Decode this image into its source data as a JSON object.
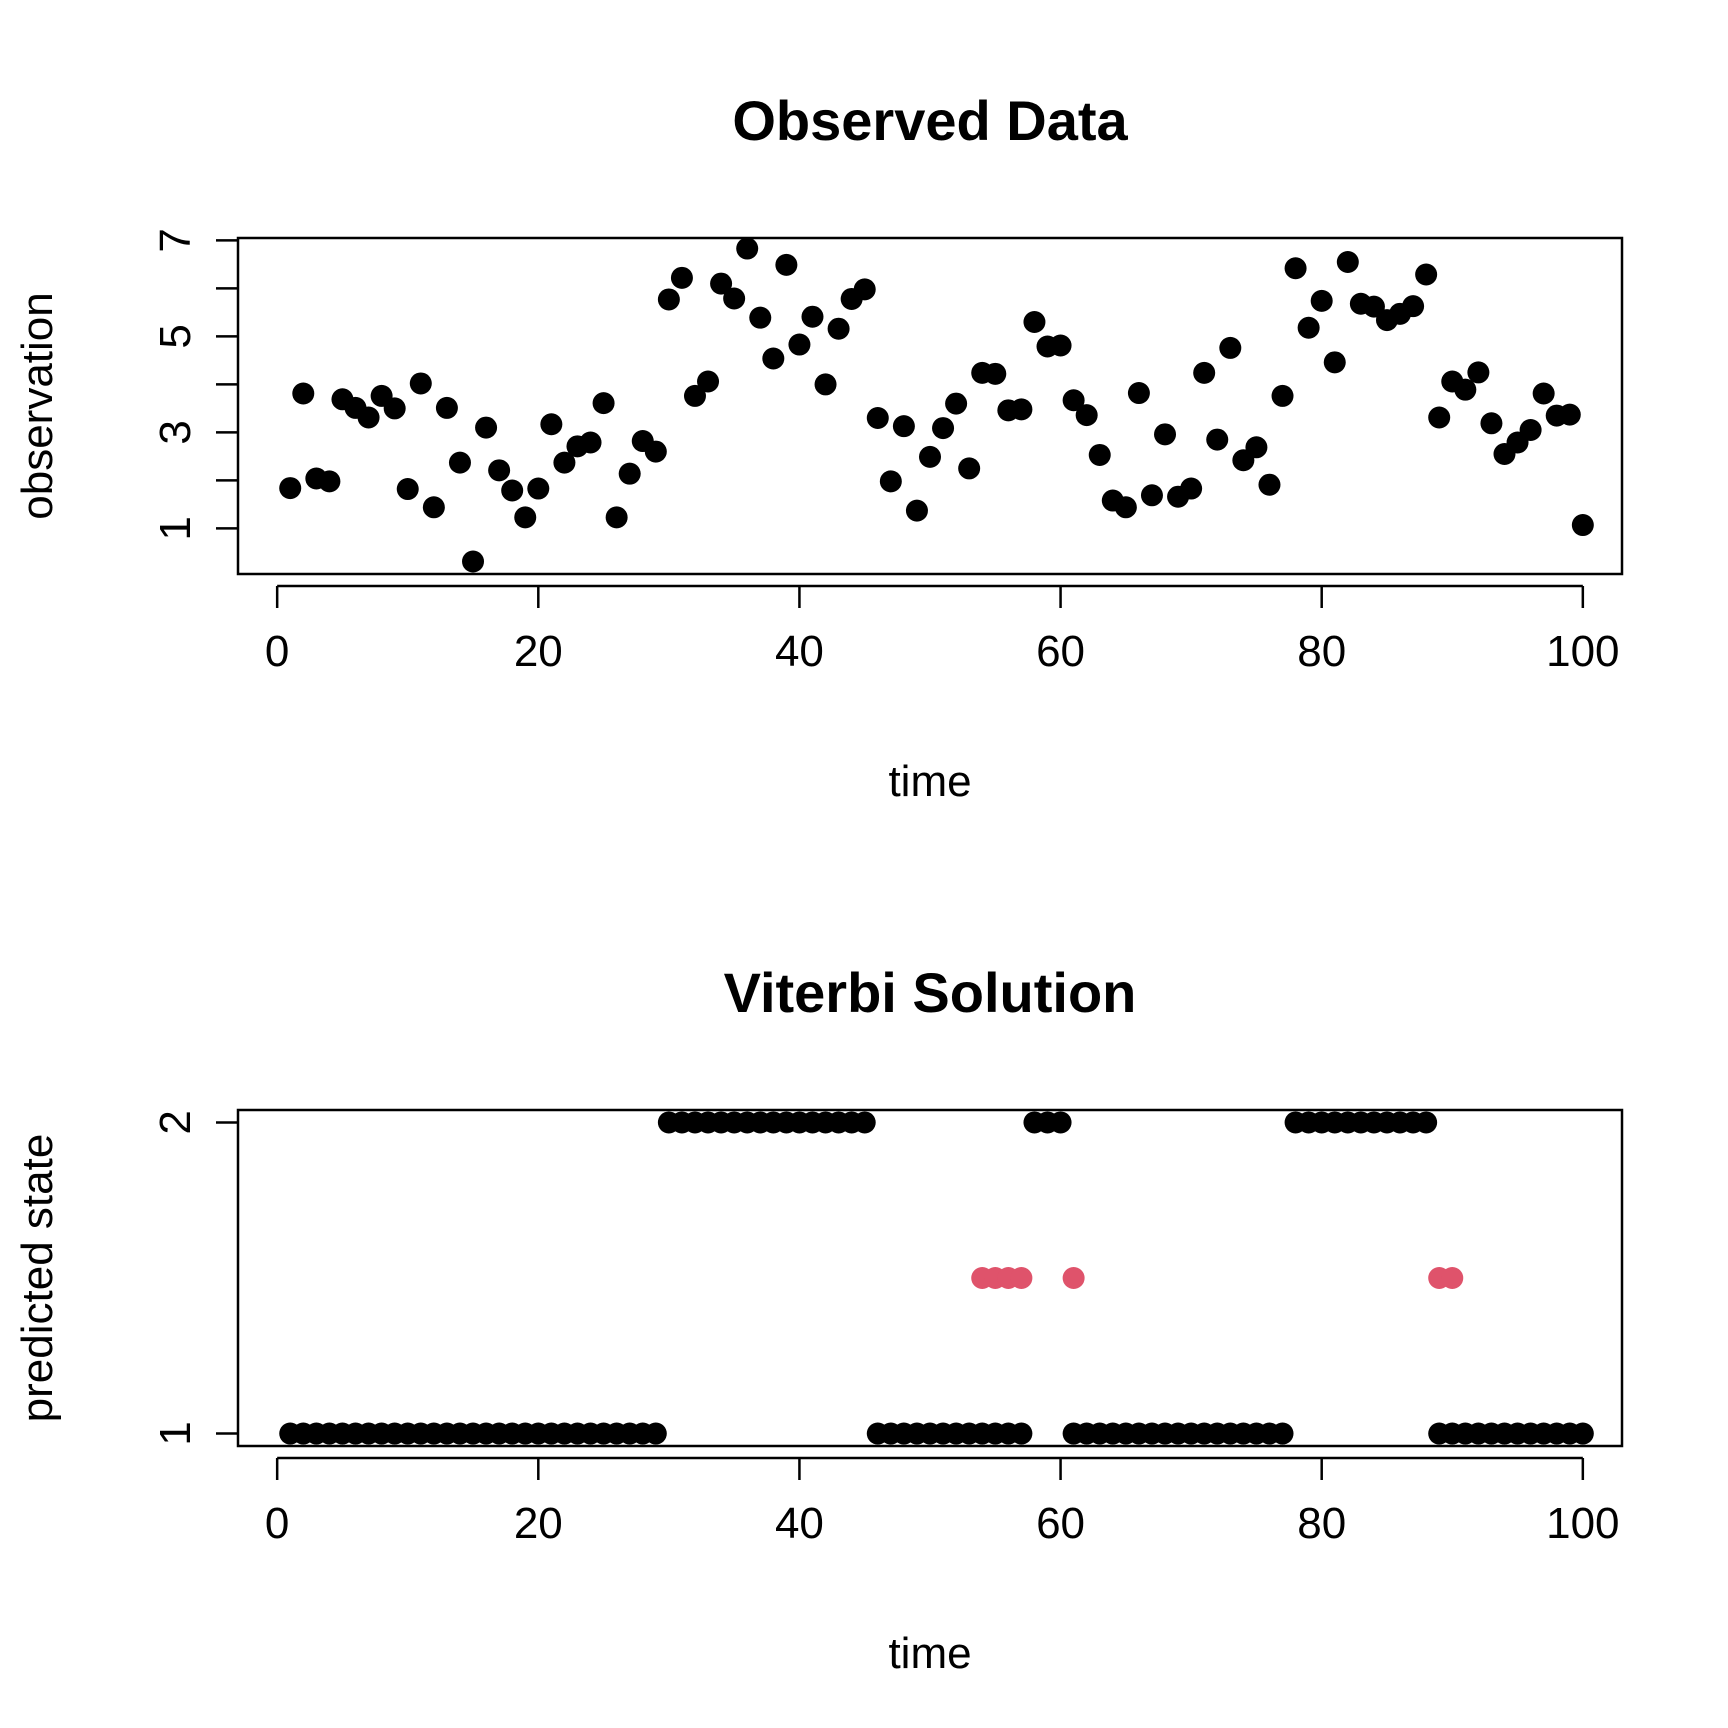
{
  "chart_data": [
    {
      "type": "scatter",
      "title": "Observed Data",
      "xlabel": "time",
      "ylabel": "observation",
      "xlim": [
        -3.0,
        103.0
      ],
      "ylim": [
        0.05,
        7.05
      ],
      "x_ticks": [
        0,
        20,
        40,
        60,
        80,
        100
      ],
      "y_ticks": [
        1,
        3,
        5,
        7
      ],
      "y_minor_ticks": [
        2,
        4,
        6
      ],
      "grid": false,
      "point_color": "#000000",
      "x": [
        1,
        2,
        3,
        4,
        5,
        6,
        7,
        8,
        9,
        10,
        11,
        12,
        13,
        14,
        15,
        16,
        17,
        18,
        19,
        20,
        21,
        22,
        23,
        24,
        25,
        26,
        27,
        28,
        29,
        30,
        31,
        32,
        33,
        34,
        35,
        36,
        37,
        38,
        39,
        40,
        41,
        42,
        43,
        44,
        45,
        46,
        47,
        48,
        49,
        50,
        51,
        52,
        53,
        54,
        55,
        56,
        57,
        58,
        59,
        60,
        61,
        62,
        63,
        64,
        65,
        66,
        67,
        68,
        69,
        70,
        71,
        72,
        73,
        74,
        75,
        76,
        77,
        78,
        79,
        80,
        81,
        82,
        83,
        84,
        85,
        86,
        87,
        88,
        89,
        90,
        91,
        92,
        93,
        94,
        95,
        96,
        97,
        98,
        99,
        100
      ],
      "y": [
        1.84,
        3.81,
        2.04,
        1.98,
        3.69,
        3.51,
        3.31,
        3.76,
        3.5,
        1.82,
        4.02,
        1.44,
        3.51,
        2.37,
        0.31,
        3.1,
        2.21,
        1.79,
        1.23,
        1.83,
        3.17,
        2.37,
        2.71,
        2.79,
        3.61,
        1.23,
        2.14,
        2.82,
        2.6,
        5.77,
        6.22,
        3.76,
        4.06,
        6.1,
        5.79,
        6.83,
        5.39,
        4.54,
        6.49,
        4.83,
        5.41,
        4.0,
        5.16,
        5.78,
        5.98,
        3.3,
        1.98,
        3.13,
        1.37,
        2.49,
        3.09,
        3.6,
        2.25,
        4.24,
        4.22,
        3.46,
        3.48,
        5.3,
        4.79,
        4.81,
        3.67,
        3.36,
        2.53,
        1.58,
        1.44,
        3.82,
        1.69,
        2.96,
        1.66,
        1.83,
        4.24,
        2.85,
        4.76,
        2.42,
        2.69,
        1.91,
        3.76,
        6.42,
        5.18,
        5.74,
        4.46,
        6.55,
        5.68,
        5.62,
        5.34,
        5.47,
        5.63,
        6.29,
        3.31,
        4.06,
        3.89,
        4.25,
        3.19,
        2.55,
        2.79,
        3.05,
        3.81,
        3.35,
        3.37,
        1.07
      ]
    },
    {
      "type": "scatter",
      "title": "Viterbi Solution",
      "xlabel": "time",
      "ylabel": "predicted state",
      "xlim": [
        -3.0,
        103.0
      ],
      "ylim": [
        0.96,
        2.04
      ],
      "x_ticks": [
        0,
        20,
        40,
        60,
        80,
        100
      ],
      "y_ticks": [
        1,
        2
      ],
      "grid": false,
      "series": [
        {
          "color": "#000000",
          "x": [
            1,
            2,
            3,
            4,
            5,
            6,
            7,
            8,
            9,
            10,
            11,
            12,
            13,
            14,
            15,
            16,
            17,
            18,
            19,
            20,
            21,
            22,
            23,
            24,
            25,
            26,
            27,
            28,
            29,
            46,
            47,
            48,
            49,
            50,
            51,
            52,
            53,
            54,
            55,
            56,
            57,
            61,
            62,
            63,
            64,
            65,
            66,
            67,
            68,
            69,
            70,
            71,
            72,
            73,
            74,
            75,
            76,
            77,
            89,
            90,
            91,
            92,
            93,
            94,
            95,
            96,
            97,
            98,
            99,
            100,
            30,
            31,
            32,
            33,
            34,
            35,
            36,
            37,
            38,
            39,
            40,
            41,
            42,
            43,
            44,
            45,
            58,
            59,
            60,
            78,
            79,
            80,
            81,
            82,
            83,
            84,
            85,
            86,
            87,
            88
          ],
          "y": [
            1,
            1,
            1,
            1,
            1,
            1,
            1,
            1,
            1,
            1,
            1,
            1,
            1,
            1,
            1,
            1,
            1,
            1,
            1,
            1,
            1,
            1,
            1,
            1,
            1,
            1,
            1,
            1,
            1,
            1,
            1,
            1,
            1,
            1,
            1,
            1,
            1,
            1,
            1,
            1,
            1,
            1,
            1,
            1,
            1,
            1,
            1,
            1,
            1,
            1,
            1,
            1,
            1,
            1,
            1,
            1,
            1,
            1,
            1,
            1,
            1,
            1,
            1,
            1,
            1,
            1,
            1,
            1,
            1,
            1,
            2,
            2,
            2,
            2,
            2,
            2,
            2,
            2,
            2,
            2,
            2,
            2,
            2,
            2,
            2,
            2,
            2,
            2,
            2,
            2,
            2,
            2,
            2,
            2,
            2,
            2,
            2,
            2,
            2,
            2
          ]
        },
        {
          "color": "#DF536B",
          "x": [
            54,
            55,
            56,
            57,
            61,
            89,
            90
          ],
          "y": [
            1.5,
            1.5,
            1.5,
            1.5,
            1.5,
            1.5,
            1.5
          ]
        }
      ]
    }
  ]
}
